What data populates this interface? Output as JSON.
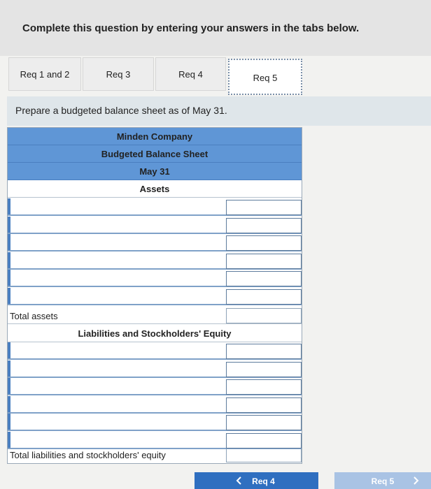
{
  "header": {
    "instruction": "Complete this question by entering your answers in the tabs below."
  },
  "tabs": [
    "Req 1 and 2",
    "Req 3",
    "Req 4",
    "Req 5"
  ],
  "prompt": "Prepare a budgeted balance sheet as of May 31.",
  "table": {
    "title": [
      "Minden Company",
      "Budgeted Balance Sheet",
      "May 31"
    ],
    "sections": [
      {
        "heading": "Assets",
        "total_label": "Total assets"
      },
      {
        "heading": "Liabilities and Stockholders' Equity",
        "total_label": "Total liabilities and stockholders' equity"
      }
    ]
  },
  "navigation": {
    "previous": "Req 4",
    "next": "Req 5"
  }
}
